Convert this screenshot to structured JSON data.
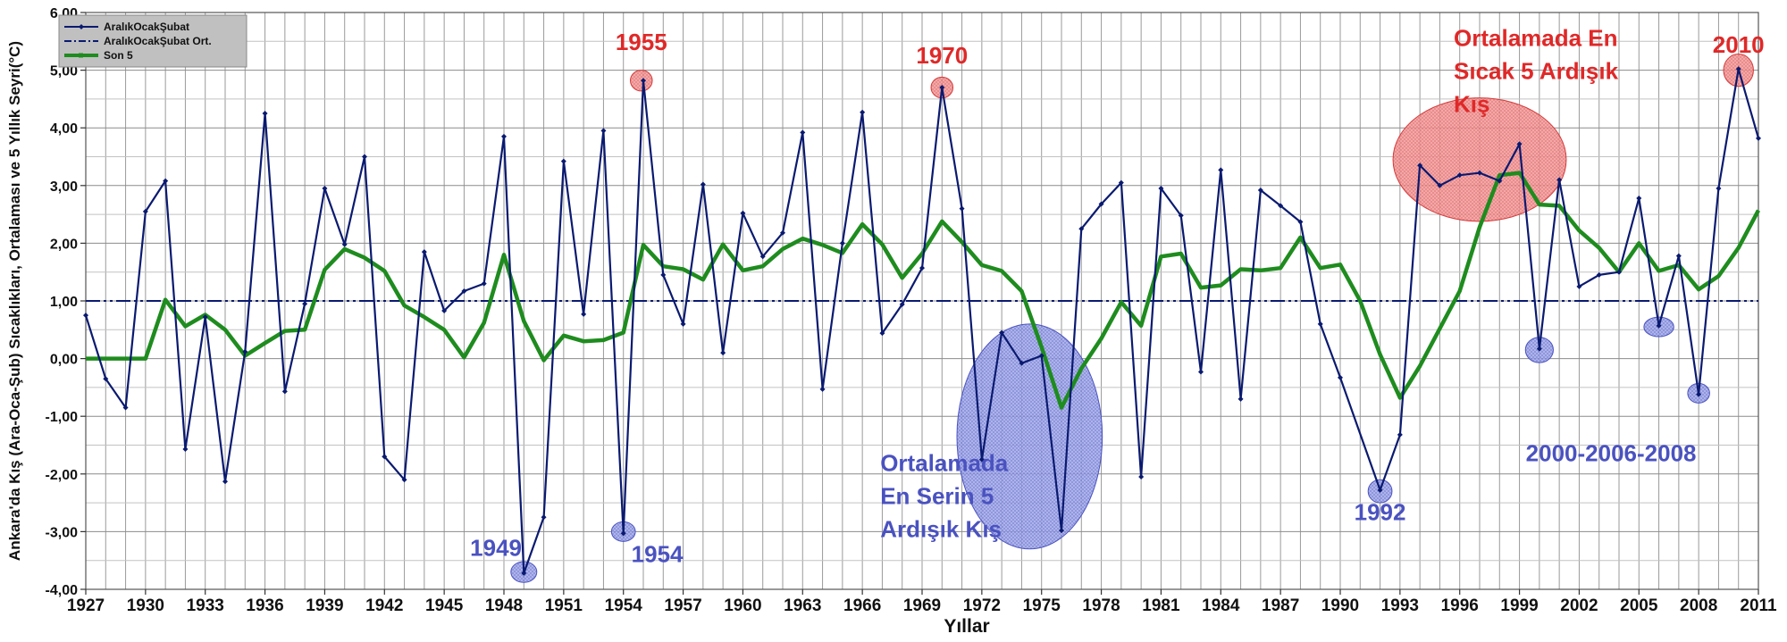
{
  "chart_data": {
    "type": "line",
    "xlabel": "Yıllar",
    "ylabel": "Ankara'da Kış (Ara-Oca-Şub) Sıcaklıkları, Ortalaması ve 5 Yıllık Seyri(°C)",
    "xlim": [
      1927,
      2011
    ],
    "ylim": [
      -4,
      6
    ],
    "grid": true,
    "legend_position": "top-left",
    "x_ticks": [
      1927,
      1930,
      1933,
      1936,
      1939,
      1942,
      1945,
      1948,
      1951,
      1954,
      1957,
      1960,
      1963,
      1966,
      1969,
      1972,
      1975,
      1978,
      1981,
      1984,
      1987,
      1990,
      1993,
      1996,
      1999,
      2002,
      2005,
      2008,
      2011
    ],
    "y_ticks": [
      -4,
      -3,
      -2,
      -1,
      0,
      1,
      2,
      3,
      4,
      5,
      6
    ],
    "y_tick_labels": [
      "-4,00",
      "-3,00",
      "-2,00",
      "-1,00",
      "0,00",
      "1,00",
      "2,00",
      "3,00",
      "4,00",
      "5,00",
      "6,00"
    ],
    "colors": {
      "winter": "#0a1a70",
      "mean": "#0a1a70",
      "moving": "#1e8c1e",
      "red": "#e02828",
      "blue": "#4a52c0",
      "grid": "#9a9a9a",
      "legend_bg": "#c0c0c0"
    },
    "series": [
      {
        "name": "AralıkOcakŞubat",
        "style": "line-with-markers",
        "x": [
          1927,
          1928,
          1929,
          1930,
          1931,
          1932,
          1933,
          1934,
          1935,
          1936,
          1937,
          1938,
          1939,
          1940,
          1941,
          1942,
          1943,
          1944,
          1945,
          1946,
          1947,
          1948,
          1949,
          1950,
          1951,
          1952,
          1953,
          1954,
          1955,
          1956,
          1957,
          1958,
          1959,
          1960,
          1961,
          1962,
          1963,
          1964,
          1965,
          1966,
          1967,
          1968,
          1969,
          1970,
          1971,
          1972,
          1973,
          1974,
          1975,
          1976,
          1977,
          1978,
          1979,
          1980,
          1981,
          1982,
          1983,
          1984,
          1985,
          1986,
          1987,
          1988,
          1989,
          1990,
          1992,
          1993,
          1994,
          1995,
          1996,
          1997,
          1998,
          1999,
          2000,
          2001,
          2002,
          2003,
          2004,
          2005,
          2006,
          2007,
          2008,
          2009,
          2010,
          2011
        ],
        "values": [
          0.75,
          -0.35,
          -0.85,
          2.55,
          3.08,
          -1.57,
          0.72,
          -2.13,
          0.12,
          4.25,
          -0.57,
          0.95,
          2.95,
          1.98,
          3.5,
          -1.7,
          -2.1,
          1.85,
          0.83,
          1.17,
          1.3,
          3.85,
          -3.72,
          -2.75,
          3.42,
          0.77,
          3.95,
          -3.03,
          4.82,
          1.45,
          0.6,
          3.02,
          0.1,
          2.52,
          1.77,
          2.18,
          3.92,
          -0.53,
          2.0,
          4.27,
          0.44,
          0.94,
          1.57,
          4.7,
          2.6,
          -1.75,
          0.45,
          -0.08,
          0.05,
          -2.98,
          2.25,
          2.68,
          3.05,
          -2.05,
          2.95,
          2.48,
          -0.23,
          3.27,
          -0.7,
          2.92,
          2.65,
          2.37,
          0.6,
          -0.33,
          -2.28,
          -1.32,
          3.35,
          3.0,
          3.18,
          3.22,
          3.08,
          3.72,
          0.17,
          3.1,
          1.25,
          1.45,
          1.5,
          2.78,
          0.57,
          1.78,
          -0.62,
          2.95,
          5.02,
          3.82
        ]
      },
      {
        "name": "AralıkOcakŞubat Ort.",
        "style": "dash-dot",
        "x": [
          1927,
          2011
        ],
        "values": [
          1.0,
          1.0
        ]
      },
      {
        "name": "Son 5",
        "style": "thick-line",
        "x": [
          1927,
          1928,
          1929,
          1930,
          1931,
          1932,
          1933,
          1934,
          1935,
          1936,
          1937,
          1938,
          1939,
          1940,
          1941,
          1942,
          1943,
          1944,
          1945,
          1946,
          1947,
          1948,
          1949,
          1950,
          1951,
          1952,
          1953,
          1954,
          1955,
          1956,
          1957,
          1958,
          1959,
          1960,
          1961,
          1962,
          1963,
          1964,
          1965,
          1966,
          1967,
          1968,
          1969,
          1970,
          1971,
          1972,
          1973,
          1974,
          1975,
          1976,
          1977,
          1978,
          1979,
          1980,
          1981,
          1982,
          1983,
          1984,
          1985,
          1986,
          1987,
          1988,
          1989,
          1990,
          1991,
          1992,
          1993,
          1994,
          1995,
          1996,
          1997,
          1998,
          1999,
          2000,
          2001,
          2002,
          2003,
          2004,
          2005,
          2006,
          2007,
          2008,
          2009,
          2010,
          2011
        ],
        "values": [
          0.0,
          0.0,
          0.0,
          0.0,
          1.02,
          0.56,
          0.76,
          0.5,
          0.05,
          0.27,
          0.48,
          0.5,
          1.54,
          1.9,
          1.75,
          1.52,
          0.92,
          0.72,
          0.5,
          0.02,
          0.62,
          1.8,
          0.65,
          -0.03,
          0.4,
          0.3,
          0.32,
          0.45,
          1.97,
          1.6,
          1.55,
          1.37,
          1.98,
          1.53,
          1.6,
          1.9,
          2.08,
          1.97,
          1.83,
          2.33,
          1.98,
          1.4,
          1.82,
          2.38,
          2.02,
          1.62,
          1.52,
          1.17,
          0.2,
          -0.85,
          -0.17,
          0.35,
          0.98,
          0.57,
          1.77,
          1.82,
          1.23,
          1.27,
          1.55,
          1.53,
          1.57,
          2.1,
          1.57,
          1.63,
          1.0,
          0.07,
          -0.68,
          -0.13,
          0.52,
          1.17,
          2.28,
          3.18,
          3.22,
          2.67,
          2.65,
          2.22,
          1.92,
          1.5,
          2.0,
          1.52,
          1.62,
          1.2,
          1.43,
          1.92,
          2.57
        ]
      }
    ],
    "legend": [
      {
        "label": "AralıkOcakŞubat",
        "style": "line-with-markers"
      },
      {
        "label": "AralıkOcakŞubat Ort.",
        "style": "dash-dot"
      },
      {
        "label": "Son 5",
        "style": "thick-line"
      }
    ],
    "annotations": [
      {
        "text": "1955",
        "color": "red",
        "x": 1954.9,
        "y": 5.35
      },
      {
        "text": "1970",
        "color": "red",
        "x": 1970.0,
        "y": 5.12
      },
      {
        "text": "2010",
        "color": "red",
        "x": 2010.0,
        "y": 5.3
      },
      {
        "lines": [
          "Ortalamada En",
          "Sıcak 5 Ardışık",
          "Kış"
        ],
        "color": "red",
        "x": 1995.7,
        "y": 5.42
      },
      {
        "text": "1949",
        "color": "blue",
        "x": 1947.6,
        "y": -3.42
      },
      {
        "text": "1954",
        "color": "blue",
        "x": 1955.7,
        "y": -3.53
      },
      {
        "text": "1992",
        "color": "blue",
        "x": 1992.0,
        "y": -2.8
      },
      {
        "text": "2000-2006-2008",
        "color": "blue",
        "x": 2003.6,
        "y": -1.78
      },
      {
        "lines": [
          "Ortalamada",
          "En Serin 5",
          "Ardışık Kış"
        ],
        "color": "blue",
        "x": 1966.9,
        "y": -1.95
      }
    ],
    "highlights": [
      {
        "name": "1955",
        "color": "red",
        "cx": 1954.9,
        "cy": 4.82,
        "rx": 0.55,
        "ry": 0.18
      },
      {
        "name": "1970",
        "color": "red",
        "cx": 1970.0,
        "cy": 4.7,
        "rx": 0.55,
        "ry": 0.18
      },
      {
        "name": "2010",
        "color": "red",
        "cx": 2010.0,
        "cy": 5.0,
        "rx": 0.75,
        "ry": 0.28
      },
      {
        "name": "warm-period",
        "color": "red",
        "cx": 1997.0,
        "cy": 3.45,
        "rx": 4.35,
        "ry": 1.07
      },
      {
        "name": "1949",
        "color": "blue",
        "cx": 1949.0,
        "cy": -3.7,
        "rx": 0.65,
        "ry": 0.18
      },
      {
        "name": "1954",
        "color": "blue",
        "cx": 1954.0,
        "cy": -3.0,
        "rx": 0.6,
        "ry": 0.17
      },
      {
        "name": "1992",
        "color": "blue",
        "cx": 1992.0,
        "cy": -2.3,
        "rx": 0.6,
        "ry": 0.2
      },
      {
        "name": "2000",
        "color": "blue",
        "cx": 2000.0,
        "cy": 0.15,
        "rx": 0.7,
        "ry": 0.22
      },
      {
        "name": "2006",
        "color": "blue",
        "cx": 2006.0,
        "cy": 0.55,
        "rx": 0.75,
        "ry": 0.17
      },
      {
        "name": "2008",
        "color": "blue",
        "cx": 2008.0,
        "cy": -0.6,
        "rx": 0.55,
        "ry": 0.17
      },
      {
        "name": "cold-period",
        "color": "blue",
        "cx": 1974.4,
        "cy": -1.35,
        "rx": 3.65,
        "ry": 1.95
      }
    ]
  }
}
